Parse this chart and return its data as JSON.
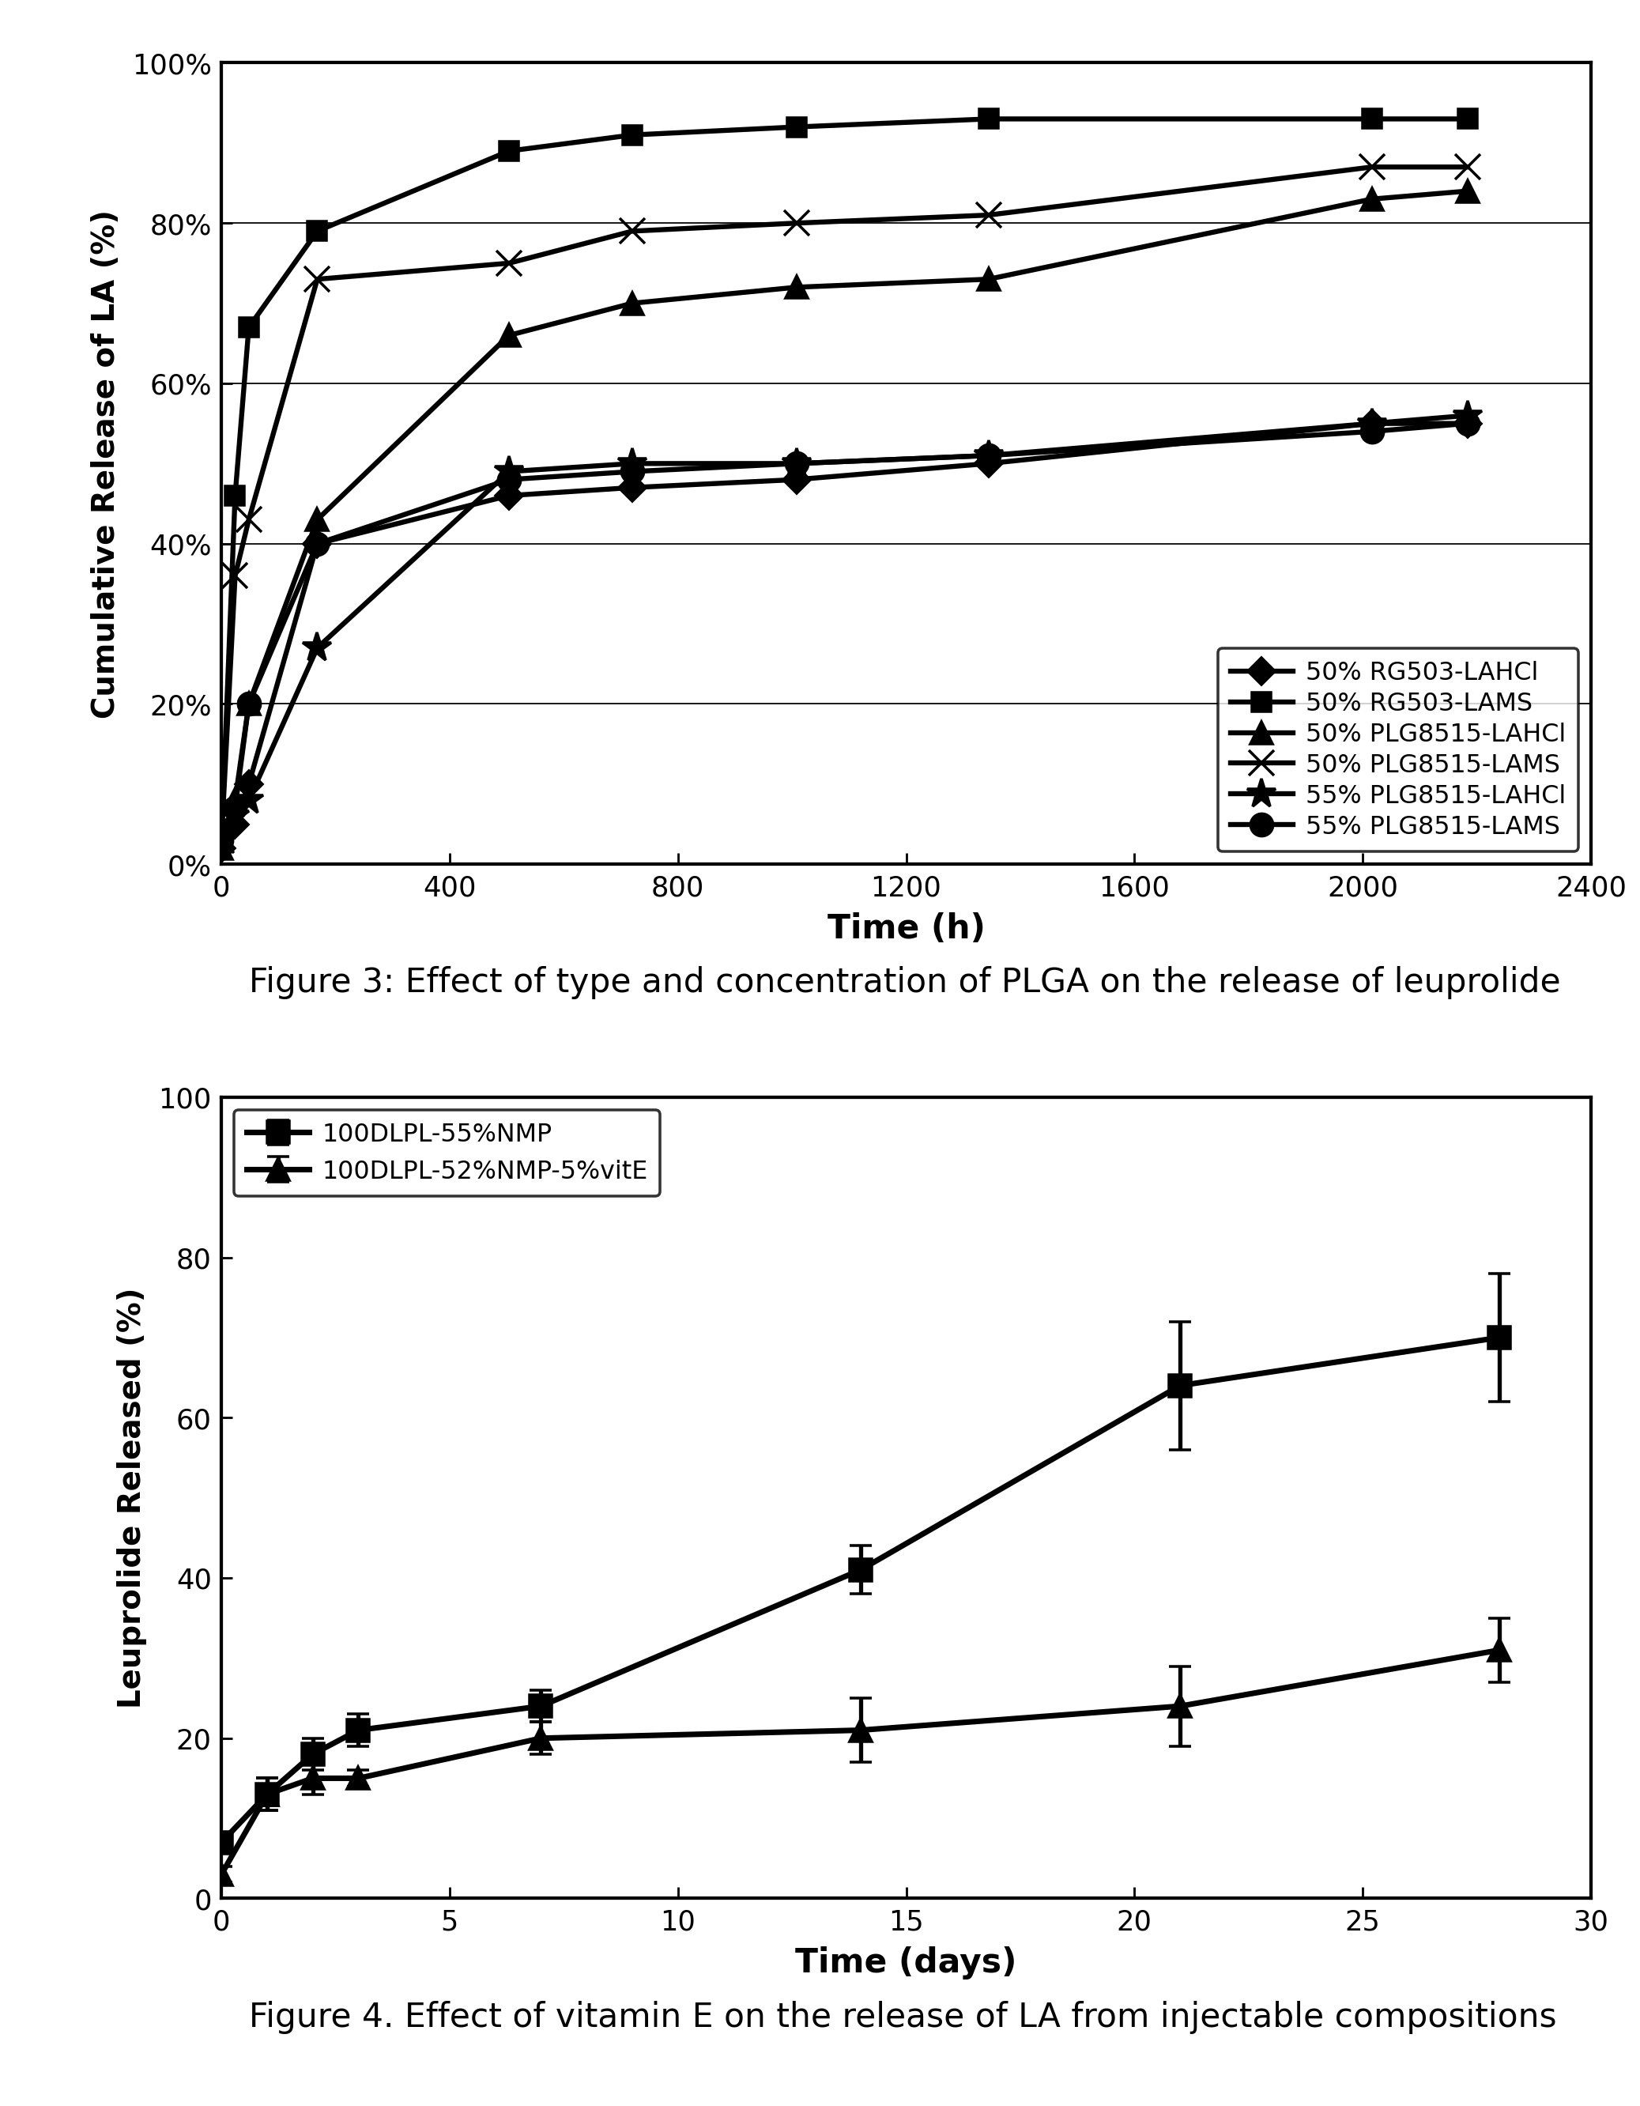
{
  "fig3": {
    "xlabel": "Time (h)",
    "ylabel": "Cumulative Release of LA (%)",
    "xlim": [
      0,
      2400
    ],
    "ylim": [
      0,
      100
    ],
    "xticks": [
      0,
      400,
      800,
      1200,
      1600,
      2000,
      2400
    ],
    "ytick_labels": [
      "0%",
      "20%",
      "40%",
      "60%",
      "80%",
      "100%"
    ],
    "ytick_vals": [
      0,
      20,
      40,
      60,
      80,
      100
    ],
    "series": [
      {
        "label": "50% RG503-LAHCl",
        "x": [
          0,
          24,
          48,
          168,
          504,
          720,
          1008,
          1344,
          2016,
          2184
        ],
        "y": [
          2,
          5,
          10,
          40,
          46,
          47,
          48,
          50,
          55,
          55
        ],
        "marker": "D",
        "markersize": 7,
        "linewidth": 1.8,
        "mfc": "black"
      },
      {
        "label": "50% RG503-LAMS",
        "x": [
          0,
          24,
          48,
          168,
          504,
          720,
          1008,
          1344,
          2016,
          2184
        ],
        "y": [
          3,
          46,
          67,
          79,
          89,
          91,
          92,
          93,
          93,
          93
        ],
        "marker": "s",
        "markersize": 7,
        "linewidth": 1.8,
        "mfc": "black"
      },
      {
        "label": "50% PLG8515-LAHCl",
        "x": [
          0,
          24,
          48,
          168,
          504,
          720,
          1008,
          1344,
          2016,
          2184
        ],
        "y": [
          2,
          8,
          20,
          43,
          66,
          70,
          72,
          73,
          83,
          84
        ],
        "marker": "^",
        "markersize": 8,
        "linewidth": 1.8,
        "mfc": "black"
      },
      {
        "label": "50% PLG8515-LAMS",
        "x": [
          0,
          24,
          48,
          168,
          504,
          720,
          1008,
          1344,
          2016,
          2184
        ],
        "y": [
          3,
          36,
          43,
          73,
          75,
          79,
          80,
          81,
          87,
          87
        ],
        "marker": "x",
        "markersize": 9,
        "linewidth": 1.8,
        "mfc": "black"
      },
      {
        "label": "55% PLG8515-LAHCl",
        "x": [
          0,
          24,
          48,
          168,
          504,
          720,
          1008,
          1344,
          2016,
          2184
        ],
        "y": [
          3,
          6,
          8,
          27,
          49,
          50,
          50,
          51,
          55,
          56
        ],
        "marker": "*",
        "markersize": 11,
        "linewidth": 1.8,
        "mfc": "black"
      },
      {
        "label": "55% PLG8515-LAMS",
        "x": [
          0,
          24,
          48,
          168,
          504,
          720,
          1008,
          1344,
          2016,
          2184
        ],
        "y": [
          3,
          7,
          20,
          40,
          48,
          49,
          50,
          51,
          54,
          55
        ],
        "marker": "o",
        "markersize": 8,
        "linewidth": 1.8,
        "mfc": "black"
      }
    ],
    "caption": "Figure 3: Effect of type and concentration of PLGA on the release of leuprolide"
  },
  "fig4": {
    "xlabel": "Time (days)",
    "ylabel": "Leuprolide Released (%)",
    "xlim": [
      0,
      30
    ],
    "ylim": [
      0,
      100
    ],
    "xticks": [
      0,
      5,
      10,
      15,
      20,
      25,
      30
    ],
    "yticks": [
      0,
      20,
      40,
      60,
      80,
      100
    ],
    "series": [
      {
        "label": "100DLPL-55%NMP",
        "x": [
          0,
          1,
          2,
          3,
          7,
          14,
          21,
          28
        ],
        "y": [
          7,
          13,
          18,
          21,
          24,
          41,
          64,
          70
        ],
        "yerr": [
          1,
          2,
          2,
          2,
          2,
          3,
          8,
          8
        ],
        "marker": "s",
        "markersize": 8,
        "linewidth": 2.0
      },
      {
        "label": "100DLPL-52%NMP-5%vitE",
        "x": [
          0,
          1,
          2,
          3,
          7,
          14,
          21,
          28
        ],
        "y": [
          3,
          13,
          15,
          15,
          20,
          21,
          24,
          31
        ],
        "yerr": [
          1,
          2,
          2,
          1,
          2,
          4,
          5,
          4
        ],
        "marker": "^",
        "markersize": 8,
        "linewidth": 2.0
      }
    ],
    "caption": "Figure 4. Effect of vitamin E on the release of LA from injectable compositions"
  },
  "figsize_inches": [
    8.17,
    10.49
  ],
  "dpi": 254
}
